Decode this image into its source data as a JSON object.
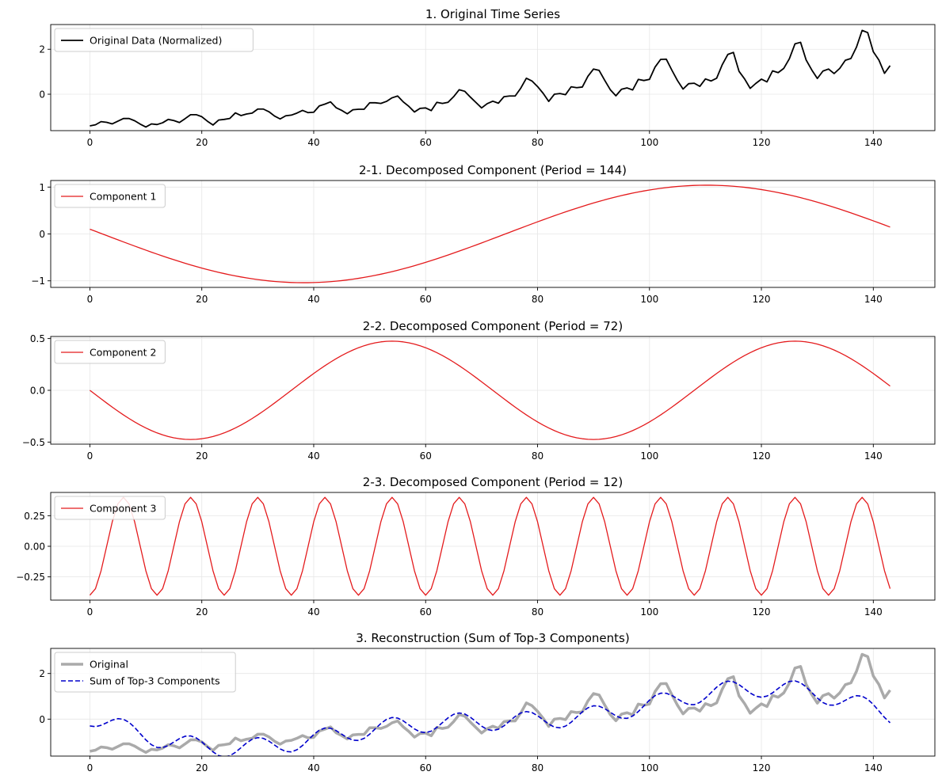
{
  "chart_data": [
    {
      "type": "line",
      "title": "1. Original Time Series",
      "xlim": [
        -7,
        151
      ],
      "ylim": [
        -1.62,
        3.1
      ],
      "xticks": [
        0,
        20,
        40,
        60,
        80,
        100,
        120,
        140
      ],
      "xtick_labels": [
        "0",
        "20",
        "40",
        "60",
        "80",
        "100",
        "120",
        "140"
      ],
      "yticks": [
        0,
        2
      ],
      "ytick_labels": [
        "0",
        "2"
      ],
      "legend": "top-left",
      "series": [
        {
          "name": "Original Data (Normalized)",
          "color": "#000000",
          "dash": "solid",
          "values": [
            -1.41,
            -1.36,
            -1.22,
            -1.25,
            -1.32,
            -1.2,
            -1.08,
            -1.08,
            -1.18,
            -1.33,
            -1.46,
            -1.32,
            -1.35,
            -1.27,
            -1.12,
            -1.17,
            -1.26,
            -1.09,
            -0.91,
            -0.91,
            -1.0,
            -1.2,
            -1.37,
            -1.15,
            -1.12,
            -1.08,
            -0.83,
            -0.95,
            -0.88,
            -0.84,
            -0.66,
            -0.66,
            -0.78,
            -0.97,
            -1.1,
            -0.96,
            -0.93,
            -0.84,
            -0.72,
            -0.82,
            -0.8,
            -0.52,
            -0.44,
            -0.34,
            -0.6,
            -0.72,
            -0.87,
            -0.69,
            -0.67,
            -0.67,
            -0.38,
            -0.38,
            -0.41,
            -0.32,
            -0.16,
            -0.08,
            -0.34,
            -0.54,
            -0.79,
            -0.63,
            -0.61,
            -0.73,
            -0.36,
            -0.41,
            -0.36,
            -0.11,
            0.2,
            0.13,
            -0.13,
            -0.37,
            -0.61,
            -0.42,
            -0.31,
            -0.4,
            -0.11,
            -0.08,
            -0.08,
            0.27,
            0.71,
            0.59,
            0.34,
            0.04,
            -0.32,
            0.0,
            0.03,
            -0.02,
            0.33,
            0.29,
            0.32,
            0.8,
            1.12,
            1.06,
            0.62,
            0.2,
            -0.07,
            0.22,
            0.28,
            0.19,
            0.66,
            0.61,
            0.66,
            1.21,
            1.55,
            1.56,
            1.07,
            0.61,
            0.23,
            0.47,
            0.49,
            0.35,
            0.68,
            0.59,
            0.71,
            1.31,
            1.77,
            1.86,
            1.02,
            0.68,
            0.26,
            0.48,
            0.67,
            0.55,
            1.04,
            0.96,
            1.15,
            1.58,
            2.24,
            2.31,
            1.52,
            1.08,
            0.7,
            1.03,
            1.12,
            0.92,
            1.15,
            1.51,
            1.59,
            2.1,
            2.84,
            2.74,
            1.89,
            1.52,
            0.93,
            1.27
          ]
        }
      ]
    },
    {
      "type": "line",
      "title": "2-1. Decomposed Component (Period = 144)",
      "xlim": [
        -7,
        151
      ],
      "ylim": [
        -1.14,
        1.14
      ],
      "xticks": [
        0,
        20,
        40,
        60,
        80,
        100,
        120,
        140
      ],
      "xtick_labels": [
        "0",
        "20",
        "40",
        "60",
        "80",
        "100",
        "120",
        "140"
      ],
      "yticks": [
        -1,
        0,
        1
      ],
      "ytick_labels": [
        "−1",
        "0",
        "1"
      ],
      "legend": "top-left",
      "series": [
        {
          "name": "Component 1",
          "color": "#e41a1c",
          "dash": "solid",
          "gen": {
            "amp": 1.04,
            "period": 144,
            "phase_deg": 174.4,
            "n": 144
          }
        }
      ]
    },
    {
      "type": "line",
      "title": "2-2. Decomposed Component (Period = 72)",
      "xlim": [
        -7,
        151
      ],
      "ylim": [
        -0.52,
        0.52
      ],
      "xticks": [
        0,
        20,
        40,
        60,
        80,
        100,
        120,
        140
      ],
      "xtick_labels": [
        "0",
        "20",
        "40",
        "60",
        "80",
        "100",
        "120",
        "140"
      ],
      "yticks": [
        -0.5,
        0,
        0.5
      ],
      "ytick_labels": [
        "−0.5",
        "0.0",
        "0.5"
      ],
      "legend": "top-left",
      "series": [
        {
          "name": "Component 2",
          "color": "#e41a1c",
          "dash": "solid",
          "gen": {
            "amp": 0.475,
            "period": 72,
            "phase_deg": 180,
            "n": 144
          }
        }
      ]
    },
    {
      "type": "line",
      "title": "2-3. Decomposed Component (Period = 12)",
      "xlim": [
        -7,
        151
      ],
      "ylim": [
        -0.44,
        0.44
      ],
      "xticks": [
        0,
        20,
        40,
        60,
        80,
        100,
        120,
        140
      ],
      "xtick_labels": [
        "0",
        "20",
        "40",
        "60",
        "80",
        "100",
        "120",
        "140"
      ],
      "yticks": [
        -0.25,
        0,
        0.25
      ],
      "ytick_labels": [
        "−0.25",
        "0.00",
        "0.25"
      ],
      "legend": "top-left",
      "series": [
        {
          "name": "Component 3",
          "color": "#e41a1c",
          "dash": "solid",
          "gen": {
            "amp": 0.4,
            "period": 12,
            "phase_deg": 270,
            "n": 144
          }
        }
      ]
    },
    {
      "type": "line",
      "title": "3. Reconstruction (Sum of Top-3 Components)",
      "xlim": [
        -7,
        151
      ],
      "ylim": [
        -1.62,
        3.1
      ],
      "xticks": [
        0,
        20,
        40,
        60,
        80,
        100,
        120,
        140
      ],
      "xtick_labels": [
        "0",
        "20",
        "40",
        "60",
        "80",
        "100",
        "120",
        "140"
      ],
      "yticks": [
        0,
        2
      ],
      "ytick_labels": [
        "0",
        "2"
      ],
      "legend": "top-left",
      "series": [
        {
          "name": "Original",
          "color": "#aaaaaa",
          "dash": "solid",
          "ref": "original"
        },
        {
          "name": "Sum of Top-3 Components",
          "color": "#0000cc",
          "dash": "dashed",
          "ref": "sum"
        }
      ]
    }
  ]
}
